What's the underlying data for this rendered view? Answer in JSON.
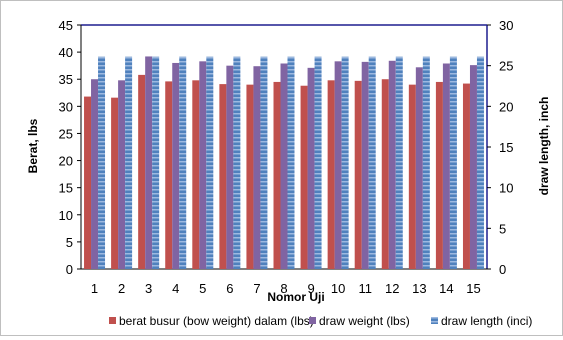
{
  "chart_data": {
    "type": "bar",
    "title": "",
    "xlabel": "Nomor Uji",
    "ylabel": "Berat, lbs",
    "y2label": "draw length, inch",
    "categories": [
      "1",
      "2",
      "3",
      "4",
      "5",
      "6",
      "7",
      "8",
      "9",
      "10",
      "11",
      "12",
      "13",
      "14",
      "15"
    ],
    "ylim": [
      0,
      45
    ],
    "y_ticks": [
      "0",
      "5",
      "10",
      "15",
      "20",
      "25",
      "30",
      "35",
      "40",
      "45"
    ],
    "y2lim": [
      0,
      30
    ],
    "y2_ticks": [
      "0",
      "5",
      "10",
      "15",
      "20",
      "25",
      "30"
    ],
    "grid": false,
    "legend_position": "bottom",
    "series": [
      {
        "name": "berat busur (bow weight) dalam (lbs)",
        "axis": "left",
        "color": "#C0504D",
        "values": [
          31.8,
          31.6,
          35.8,
          34.6,
          34.8,
          34.1,
          34.0,
          34.5,
          33.8,
          34.8,
          34.7,
          35.0,
          34.0,
          34.5,
          34.2
        ]
      },
      {
        "name": "draw weight (lbs)",
        "axis": "left",
        "color": "#8064A2",
        "values": [
          35.0,
          34.8,
          39.2,
          38.0,
          38.3,
          37.5,
          37.4,
          37.9,
          37.1,
          38.3,
          38.2,
          38.4,
          37.2,
          37.9,
          37.6
        ]
      },
      {
        "name": "draw length (inci)",
        "axis": "right",
        "color": "#4F81BD",
        "values": [
          26.1,
          26.1,
          26.1,
          26.1,
          26.1,
          26.1,
          26.1,
          26.1,
          26.1,
          26.1,
          26.1,
          26.1,
          26.1,
          26.1,
          26.1
        ]
      }
    ]
  }
}
